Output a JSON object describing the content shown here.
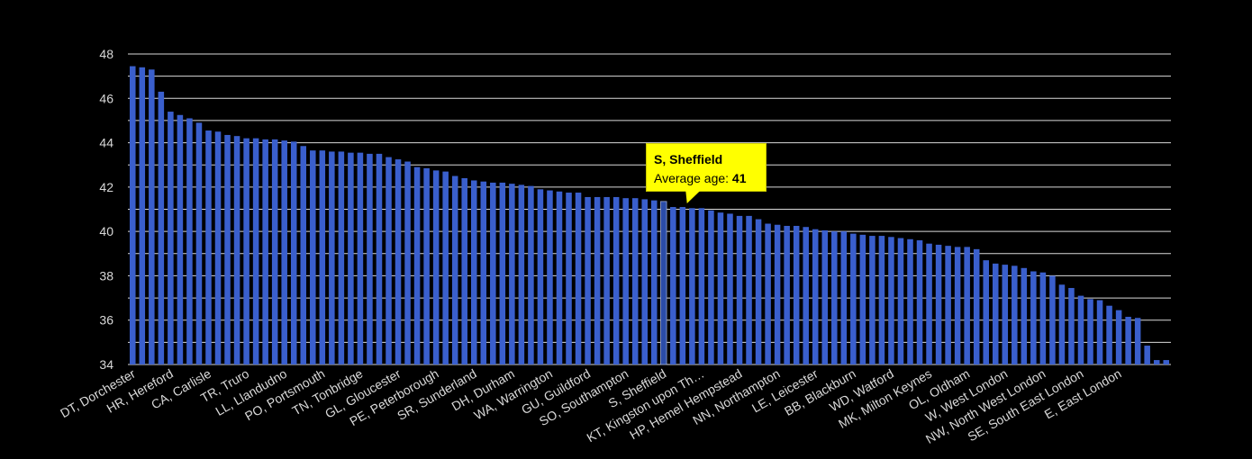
{
  "chart_data": {
    "type": "bar",
    "ylim": [
      34,
      48
    ],
    "yticks": [
      34,
      36,
      38,
      40,
      42,
      44,
      46,
      48
    ],
    "grid": true,
    "bar_color": "#3a5fcd",
    "values": [
      47.45,
      47.4,
      47.3,
      46.3,
      45.4,
      45.25,
      45.1,
      44.9,
      44.55,
      44.5,
      44.35,
      44.3,
      44.2,
      44.2,
      44.15,
      44.15,
      44.1,
      44.05,
      43.85,
      43.65,
      43.65,
      43.6,
      43.6,
      43.55,
      43.55,
      43.5,
      43.5,
      43.35,
      43.25,
      43.15,
      42.9,
      42.85,
      42.75,
      42.7,
      42.5,
      42.4,
      42.3,
      42.25,
      42.2,
      42.2,
      42.15,
      42.1,
      42.05,
      41.9,
      41.85,
      41.8,
      41.75,
      41.75,
      41.55,
      41.55,
      41.55,
      41.55,
      41.5,
      41.5,
      41.45,
      41.4,
      41.35,
      41.1,
      41.1,
      41.05,
      41.05,
      40.95,
      40.85,
      40.8,
      40.7,
      40.7,
      40.55,
      40.35,
      40.3,
      40.25,
      40.25,
      40.2,
      40.1,
      40.05,
      40.0,
      40.0,
      39.9,
      39.85,
      39.8,
      39.8,
      39.75,
      39.7,
      39.65,
      39.6,
      39.45,
      39.4,
      39.35,
      39.3,
      39.3,
      39.2,
      38.7,
      38.55,
      38.5,
      38.45,
      38.35,
      38.2,
      38.15,
      38.0,
      37.6,
      37.45,
      37.1,
      36.95,
      36.9,
      36.65,
      36.45,
      36.15,
      36.1,
      34.85,
      34.2,
      34.2
    ],
    "tick_labels": [
      {
        "index": 0,
        "text": "DT, Dorchester"
      },
      {
        "index": 4,
        "text": "HR, Hereford"
      },
      {
        "index": 8,
        "text": "CA, Carlisle"
      },
      {
        "index": 12,
        "text": "TR, Truro"
      },
      {
        "index": 16,
        "text": "LL, Llandudno"
      },
      {
        "index": 20,
        "text": "PO, Portsmouth"
      },
      {
        "index": 24,
        "text": "TN, Tonbridge"
      },
      {
        "index": 28,
        "text": "GL, Gloucester"
      },
      {
        "index": 32,
        "text": "PE, Peterborough"
      },
      {
        "index": 36,
        "text": "SR, Sunderland"
      },
      {
        "index": 40,
        "text": "DH, Durham"
      },
      {
        "index": 44,
        "text": "WA, Warrington"
      },
      {
        "index": 48,
        "text": "GU, Guildford"
      },
      {
        "index": 52,
        "text": "SO, Southampton"
      },
      {
        "index": 56,
        "text": "S, Sheffield"
      },
      {
        "index": 60,
        "text": "KT, Kingston upon Th…"
      },
      {
        "index": 64,
        "text": "HP, Hemel Hempstead"
      },
      {
        "index": 68,
        "text": "NN, Northampton"
      },
      {
        "index": 72,
        "text": "LE, Leicester"
      },
      {
        "index": 76,
        "text": "BB, Blackburn"
      },
      {
        "index": 80,
        "text": "WD, Watford"
      },
      {
        "index": 84,
        "text": "MK, Milton Keynes"
      },
      {
        "index": 88,
        "text": "OL, Oldham"
      },
      {
        "index": 92,
        "text": "W, West London"
      },
      {
        "index": 96,
        "text": "NW, North West London"
      },
      {
        "index": 100,
        "text": "SE, South East London"
      },
      {
        "index": 104,
        "text": "E, East London"
      }
    ],
    "highlight_index": 56
  },
  "tooltip": {
    "title": "S, Sheffield",
    "label": "Average age: ",
    "value": "41"
  }
}
